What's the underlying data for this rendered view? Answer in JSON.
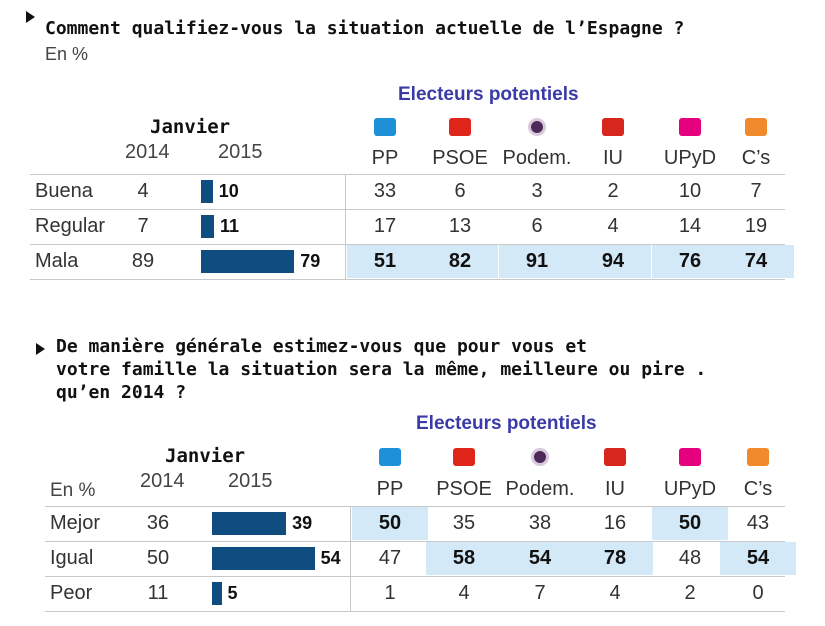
{
  "chart_data": [
    {
      "type": "table",
      "title": "Comment qualifiez-vous la situation actuelle de l’Espagne ?",
      "unit_label": "En %",
      "group_label": "Electeurs potentiels",
      "janvier_label": "Janvier",
      "years": [
        "2014",
        "2015"
      ],
      "columns": [
        "PP",
        "PSOE",
        "Podem.",
        "IU",
        "UPyD",
        "C’s"
      ],
      "rows": [
        {
          "label": "Buena",
          "y2014": "4",
          "y2015": "10",
          "bar_value": 10,
          "values": [
            "33",
            "6",
            "3",
            "2",
            "10",
            "7"
          ],
          "highlight": [
            false,
            false,
            false,
            false,
            false,
            false
          ]
        },
        {
          "label": "Regular",
          "y2014": "7",
          "y2015": "11",
          "bar_value": 11,
          "values": [
            "17",
            "13",
            "6",
            "4",
            "14",
            "19"
          ],
          "highlight": [
            false,
            false,
            false,
            false,
            false,
            false
          ]
        },
        {
          "label": "Mala",
          "y2014": "89",
          "y2015": "79",
          "bar_value": 79,
          "values": [
            "51",
            "82",
            "91",
            "94",
            "76",
            "74"
          ],
          "highlight": [
            true,
            true,
            true,
            true,
            true,
            true
          ]
        }
      ]
    },
    {
      "type": "table",
      "title_lines": [
        "De manière générale estimez-vous que pour vous et",
        "votre famille la situation sera la même, meilleure ou pire .",
        "qu’en 2014 ?"
      ],
      "unit_label": "En %",
      "group_label": "Electeurs potentiels",
      "janvier_label": "Janvier",
      "years": [
        "2014",
        "2015"
      ],
      "columns": [
        "PP",
        "PSOE",
        "Podem.",
        "IU",
        "UPyD",
        "C’s"
      ],
      "rows": [
        {
          "label": "Mejor",
          "y2014": "36",
          "y2015": "39",
          "bar_value": 39,
          "values": [
            "50",
            "35",
            "38",
            "16",
            "50",
            "43"
          ],
          "highlight": [
            true,
            false,
            false,
            false,
            true,
            false
          ]
        },
        {
          "label": "Igual",
          "y2014": "50",
          "y2015": "54",
          "bar_value": 54,
          "values": [
            "47",
            "58",
            "54",
            "78",
            "48",
            "54"
          ],
          "highlight": [
            false,
            true,
            true,
            true,
            false,
            true
          ]
        },
        {
          "label": "Peor",
          "y2014": "11",
          "y2015": "5",
          "bar_value": 5,
          "values": [
            "1",
            "4",
            "7",
            "4",
            "2",
            "0"
          ],
          "highlight": [
            false,
            false,
            false,
            false,
            false,
            false
          ]
        }
      ]
    }
  ],
  "party_logo_colors": [
    "#1e90d8",
    "#e0251b",
    "#4e2a5a",
    "#d7261e",
    "#e5007d",
    "#f08a2c"
  ]
}
